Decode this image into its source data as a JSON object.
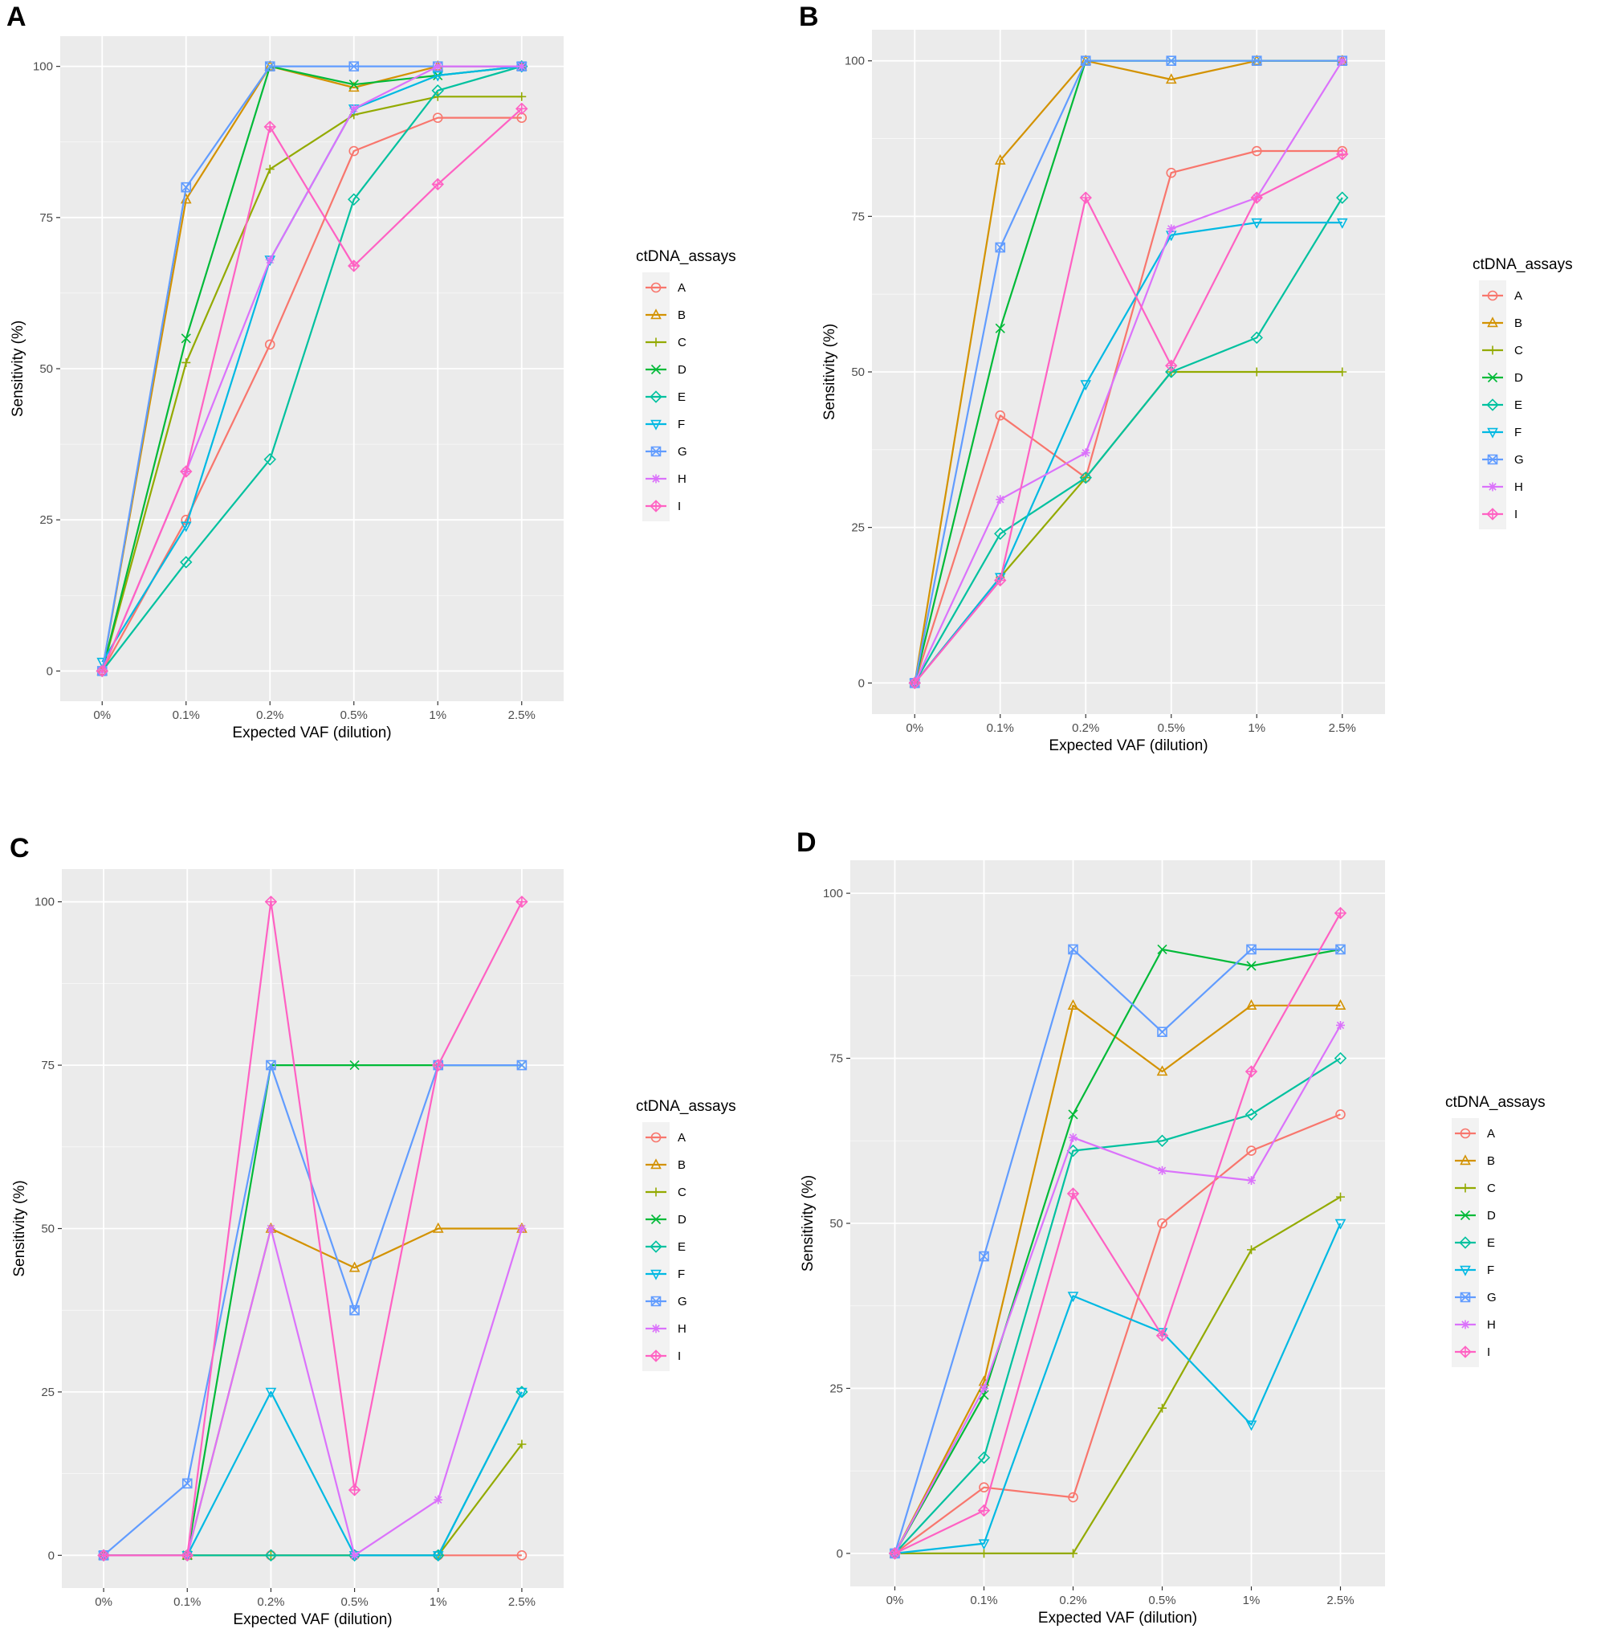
{
  "colors": {
    "A": "#F8766D",
    "B": "#D39200",
    "C": "#93AA00",
    "D": "#00BA38",
    "E": "#00C19F",
    "F": "#00B9E3",
    "G": "#619CFF",
    "H": "#DB72FB",
    "I": "#FF61C3"
  },
  "chart_data": [
    {
      "panel": "A",
      "type": "line",
      "xlabel": "Expected VAF (dilution)",
      "ylabel": "Sensitivity (%)",
      "legend_title": "ctDNA_assays",
      "categories": [
        "0%",
        "0.1%",
        "0.2%",
        "0.5%",
        "1%",
        "2.5%"
      ],
      "yticks": [
        "0",
        "25",
        "50",
        "75",
        "100"
      ],
      "ylim": [
        -5,
        105
      ],
      "series": [
        {
          "name": "A",
          "values": [
            0,
            25,
            54,
            86,
            91.5,
            91.5
          ]
        },
        {
          "name": "B",
          "values": [
            0,
            78,
            100,
            96.5,
            100,
            100
          ]
        },
        {
          "name": "C",
          "values": [
            0,
            51,
            83,
            92,
            95,
            95
          ]
        },
        {
          "name": "D",
          "values": [
            0,
            55,
            100,
            97,
            98.5,
            100
          ]
        },
        {
          "name": "E",
          "values": [
            0,
            18,
            35,
            78,
            96,
            100
          ]
        },
        {
          "name": "F",
          "values": [
            1.5,
            24,
            68,
            93,
            98.5,
            100
          ]
        },
        {
          "name": "G",
          "values": [
            0,
            80,
            100,
            100,
            100,
            100
          ]
        },
        {
          "name": "H",
          "values": [
            0,
            33,
            68,
            93,
            100,
            100
          ]
        },
        {
          "name": "I",
          "values": [
            0,
            33,
            90,
            67,
            80.5,
            93
          ]
        }
      ]
    },
    {
      "panel": "B",
      "type": "line",
      "xlabel": "Expected VAF (dilution)",
      "ylabel": "Sensitivity (%)",
      "legend_title": "ctDNA_assays",
      "categories": [
        "0%",
        "0.1%",
        "0.2%",
        "0.5%",
        "1%",
        "2.5%"
      ],
      "yticks": [
        "0",
        "25",
        "50",
        "75",
        "100"
      ],
      "ylim": [
        -5,
        105
      ],
      "series": [
        {
          "name": "A",
          "values": [
            0,
            43,
            33,
            82,
            85.5,
            85.5
          ]
        },
        {
          "name": "B",
          "values": [
            0,
            84,
            100,
            97,
            100,
            100
          ]
        },
        {
          "name": "C",
          "values": [
            0,
            17,
            33,
            50,
            50,
            50
          ]
        },
        {
          "name": "D",
          "values": [
            0,
            57,
            100,
            100,
            100,
            100
          ]
        },
        {
          "name": "E",
          "values": [
            0,
            24,
            33,
            50,
            55.5,
            78
          ]
        },
        {
          "name": "F",
          "values": [
            0,
            17,
            48,
            72,
            74,
            74
          ]
        },
        {
          "name": "G",
          "values": [
            0,
            70,
            100,
            100,
            100,
            100
          ]
        },
        {
          "name": "H",
          "values": [
            0,
            29.5,
            37,
            73,
            78,
            100
          ]
        },
        {
          "name": "I",
          "values": [
            0,
            16.5,
            78,
            51,
            78,
            85
          ]
        }
      ]
    },
    {
      "panel": "C",
      "type": "line",
      "xlabel": "Expected VAF (dilution)",
      "ylabel": "Sensitivity (%)",
      "legend_title": "ctDNA_assays",
      "categories": [
        "0%",
        "0.1%",
        "0.2%",
        "0.5%",
        "1%",
        "2.5%"
      ],
      "yticks": [
        "0",
        "25",
        "50",
        "75",
        "100"
      ],
      "ylim": [
        -5,
        105
      ],
      "series": [
        {
          "name": "A",
          "values": [
            0,
            0,
            0,
            0,
            0,
            0
          ]
        },
        {
          "name": "B",
          "values": [
            0,
            0,
            50,
            44,
            50,
            50
          ]
        },
        {
          "name": "C",
          "values": [
            0,
            0,
            0,
            0,
            0,
            17
          ]
        },
        {
          "name": "D",
          "values": [
            0,
            0,
            75,
            75,
            75,
            75
          ]
        },
        {
          "name": "E",
          "values": [
            0,
            0,
            0,
            0,
            0,
            25
          ]
        },
        {
          "name": "F",
          "values": [
            0,
            0,
            25,
            0,
            0,
            25
          ]
        },
        {
          "name": "G",
          "values": [
            0,
            11,
            75,
            37.5,
            75,
            75
          ]
        },
        {
          "name": "H",
          "values": [
            0,
            0,
            50,
            0,
            8.5,
            50
          ]
        },
        {
          "name": "I",
          "values": [
            0,
            0,
            100,
            10,
            75,
            100
          ]
        }
      ]
    },
    {
      "panel": "D",
      "type": "line",
      "xlabel": "Expected VAF (dilution)",
      "ylabel": "Sensitivity (%)",
      "legend_title": "ctDNA_assays",
      "categories": [
        "0%",
        "0.1%",
        "0.2%",
        "0.5%",
        "1%",
        "2.5%"
      ],
      "yticks": [
        "0",
        "25",
        "50",
        "75",
        "100"
      ],
      "ylim": [
        -5,
        105
      ],
      "series": [
        {
          "name": "A",
          "values": [
            0,
            10,
            8.5,
            50,
            61,
            66.5
          ]
        },
        {
          "name": "B",
          "values": [
            0,
            26,
            83,
            73,
            83,
            83
          ]
        },
        {
          "name": "C",
          "values": [
            0,
            0,
            0,
            22,
            46,
            54
          ]
        },
        {
          "name": "D",
          "values": [
            0,
            24,
            66.5,
            91.5,
            89,
            91.5
          ]
        },
        {
          "name": "E",
          "values": [
            0,
            14.5,
            61,
            62.5,
            66.5,
            75
          ]
        },
        {
          "name": "F",
          "values": [
            0,
            1.5,
            39,
            33.5,
            19.5,
            50
          ]
        },
        {
          "name": "G",
          "values": [
            0,
            45,
            91.5,
            79,
            91.5,
            91.5
          ]
        },
        {
          "name": "H",
          "values": [
            0,
            25,
            63,
            58,
            56.5,
            80
          ]
        },
        {
          "name": "I",
          "values": [
            0,
            6.5,
            54.5,
            33,
            73,
            97
          ]
        }
      ]
    }
  ]
}
